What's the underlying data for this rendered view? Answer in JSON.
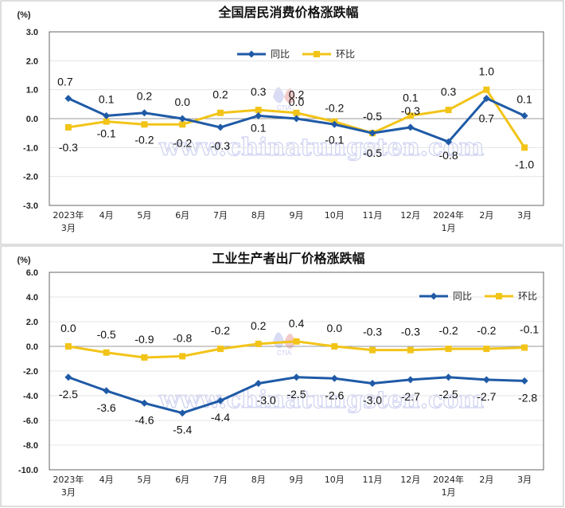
{
  "chart_data": [
    {
      "type": "line",
      "title": "全国居民消费价格涨跌幅",
      "unit": "(%)",
      "categories": [
        "2023年|3月",
        "4月",
        "5月",
        "6月",
        "7月",
        "8月",
        "9月",
        "10月",
        "11月",
        "12月",
        "2024年|1月",
        "2月",
        "3月"
      ],
      "ylim": [
        -3.0,
        3.0
      ],
      "yticks": [
        3.0,
        2.0,
        1.0,
        0.0,
        -1.0,
        -2.0,
        -3.0
      ],
      "ytick_labels": [
        "3.0",
        "2.0",
        "1.0",
        "0.0",
        "-1.0",
        "-2.0",
        "-3.0"
      ],
      "grid": true,
      "legend": "top-center",
      "series": [
        {
          "name": "同比",
          "color": "#1f5aa6",
          "values": [
            0.7,
            0.1,
            0.2,
            0.0,
            -0.3,
            0.1,
            0.0,
            -0.2,
            -0.5,
            -0.3,
            -0.8,
            0.7,
            0.1
          ],
          "labels": [
            "0.7",
            "0.1",
            "0.2",
            "0.0",
            "-0.3",
            "0.1",
            "0.0",
            "-0.2",
            "-0.5",
            "-0.3",
            "-0.8",
            "0.7",
            "0.1"
          ]
        },
        {
          "name": "环比",
          "color": "#f2c418",
          "values": [
            -0.3,
            -0.1,
            -0.2,
            -0.2,
            0.2,
            0.3,
            0.2,
            -0.1,
            -0.5,
            0.1,
            0.3,
            1.0,
            -1.0
          ],
          "labels": [
            "-0.3",
            "-0.1",
            "-0.2",
            "-0.2",
            "0.2",
            "0.3",
            "0.2",
            "-0.1",
            "-0.5",
            "0.1",
            "0.3",
            "1.0",
            "-1.0"
          ]
        }
      ]
    },
    {
      "type": "line",
      "title": "工业生产者出厂价格涨跌幅",
      "unit": "(%)",
      "categories": [
        "2023年|3月",
        "4月",
        "5月",
        "6月",
        "7月",
        "8月",
        "9月",
        "10月",
        "11月",
        "12月",
        "2024年|1月",
        "2月",
        "3月"
      ],
      "ylim": [
        -10.0,
        6.0
      ],
      "yticks": [
        6.0,
        4.0,
        2.0,
        0.0,
        -2.0,
        -4.0,
        -6.0,
        -8.0,
        -10.0
      ],
      "ytick_labels": [
        "6.0",
        "4.0",
        "2.0",
        "0.0",
        "-2.0",
        "-4.0",
        "-6.0",
        "-8.0",
        "-10.0"
      ],
      "grid": true,
      "legend": "top-right",
      "series": [
        {
          "name": "同比",
          "color": "#1f5aa6",
          "values": [
            -2.5,
            -3.6,
            -4.6,
            -5.4,
            -4.4,
            -3.0,
            -2.5,
            -2.6,
            -3.0,
            -2.7,
            -2.5,
            -2.7,
            -2.8
          ],
          "labels": [
            "-2.5",
            "-3.6",
            "-4.6",
            "-5.4",
            "-4.4",
            "-3.0",
            "-2.5",
            "-2.6",
            "-3.0",
            "-2.7",
            "-2.5",
            "-2.7",
            "-2.8"
          ]
        },
        {
          "name": "环比",
          "color": "#f2c418",
          "values": [
            0.0,
            -0.5,
            -0.9,
            -0.8,
            -0.2,
            0.2,
            0.4,
            0.0,
            -0.3,
            -0.3,
            -0.2,
            -0.2,
            -0.1
          ],
          "labels": [
            "0.0",
            "-0.5",
            "-0.9",
            "-0.8",
            "-0.2",
            "0.2",
            "0.4",
            "0.0",
            "-0.3",
            "-0.3",
            "-0.2",
            "-0.2",
            "-0.1"
          ]
        }
      ]
    }
  ],
  "watermark": {
    "text": "www.chinatungsten.com",
    "logo_text": "CTIA",
    "color": "#c9cdf0"
  }
}
